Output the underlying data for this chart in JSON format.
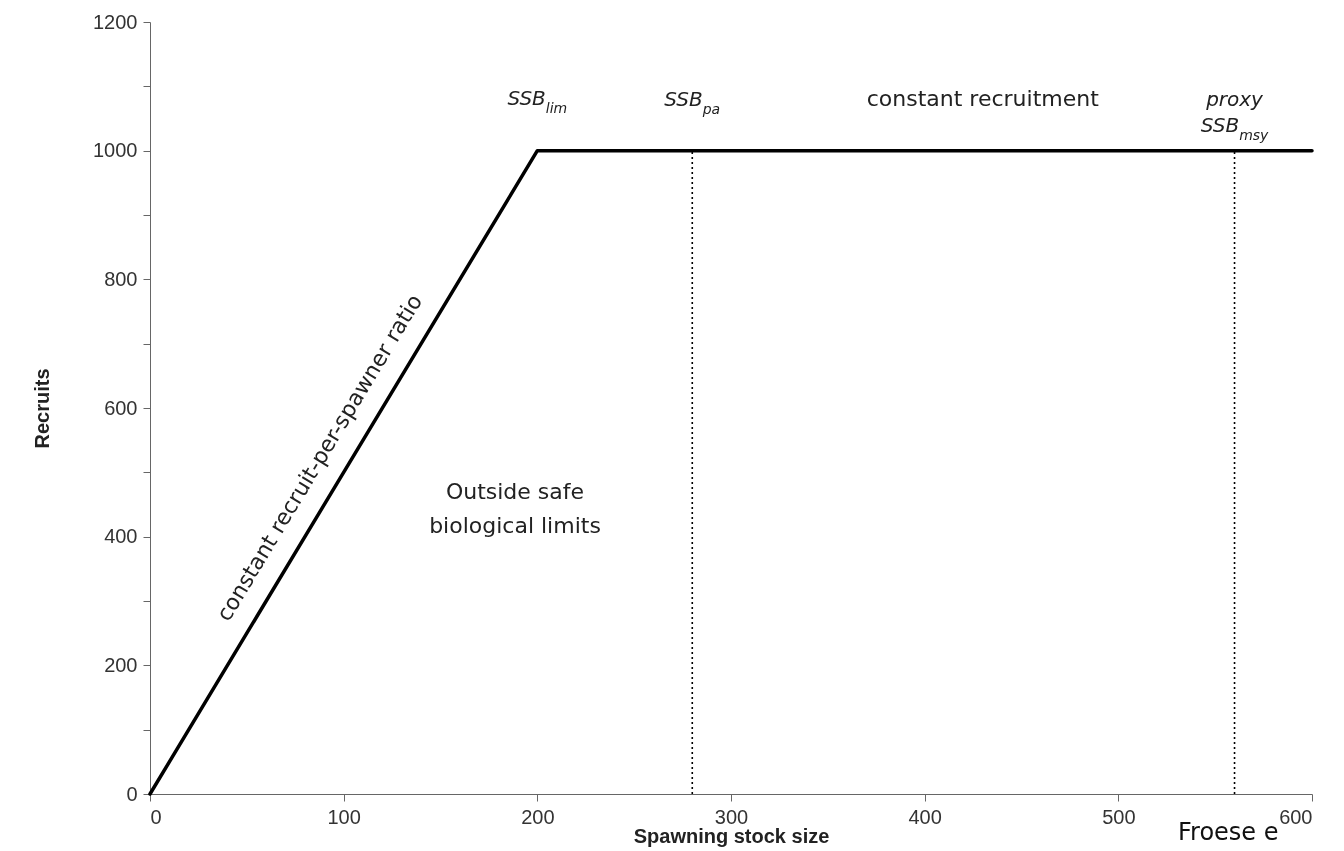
{
  "chart_data": {
    "type": "line",
    "x": [
      0,
      200,
      600
    ],
    "series": [
      {
        "color": "#000000",
        "values": [
          0,
          1000,
          1000
        ]
      }
    ],
    "line_style": "solid",
    "xlim": [
      0,
      600
    ],
    "ylim": [
      0,
      1200
    ],
    "xticks": [
      0,
      100,
      200,
      300,
      400,
      500,
      600
    ],
    "yticks": [
      0,
      {
        "value": 100,
        "label": null
      },
      200,
      {
        "value": 300,
        "label": null
      },
      400,
      {
        "value": 500,
        "label": null
      },
      600,
      {
        "value": 700,
        "label": null
      },
      800,
      {
        "value": 900,
        "label": null
      },
      1000,
      {
        "value": 1100,
        "label": null
      },
      1200
    ],
    "xlabel": "Spawning stock size",
    "ylabel": "Recruits",
    "ref_lines": [
      {
        "axis": "x",
        "value": 280,
        "label": "SSB$_{pa}$",
        "color": "#000000",
        "line_style": "dotted"
      },
      {
        "axis": "x",
        "value": 560,
        "label": "proxy SSB$_{msy}$",
        "color": "#000000",
        "line_style": "dotted"
      }
    ],
    "annotations": [
      {
        "text": "SSB$_{lim}$",
        "x": 200,
        "y": 1000
      },
      {
        "text": "constant recruitment",
        "x": 430,
        "y": 1000
      },
      {
        "text": "constant recruit-per-spawner ratio",
        "x": 100,
        "y": 500
      },
      "Outside safe\nbiological limits",
      "Froese e"
    ]
  }
}
